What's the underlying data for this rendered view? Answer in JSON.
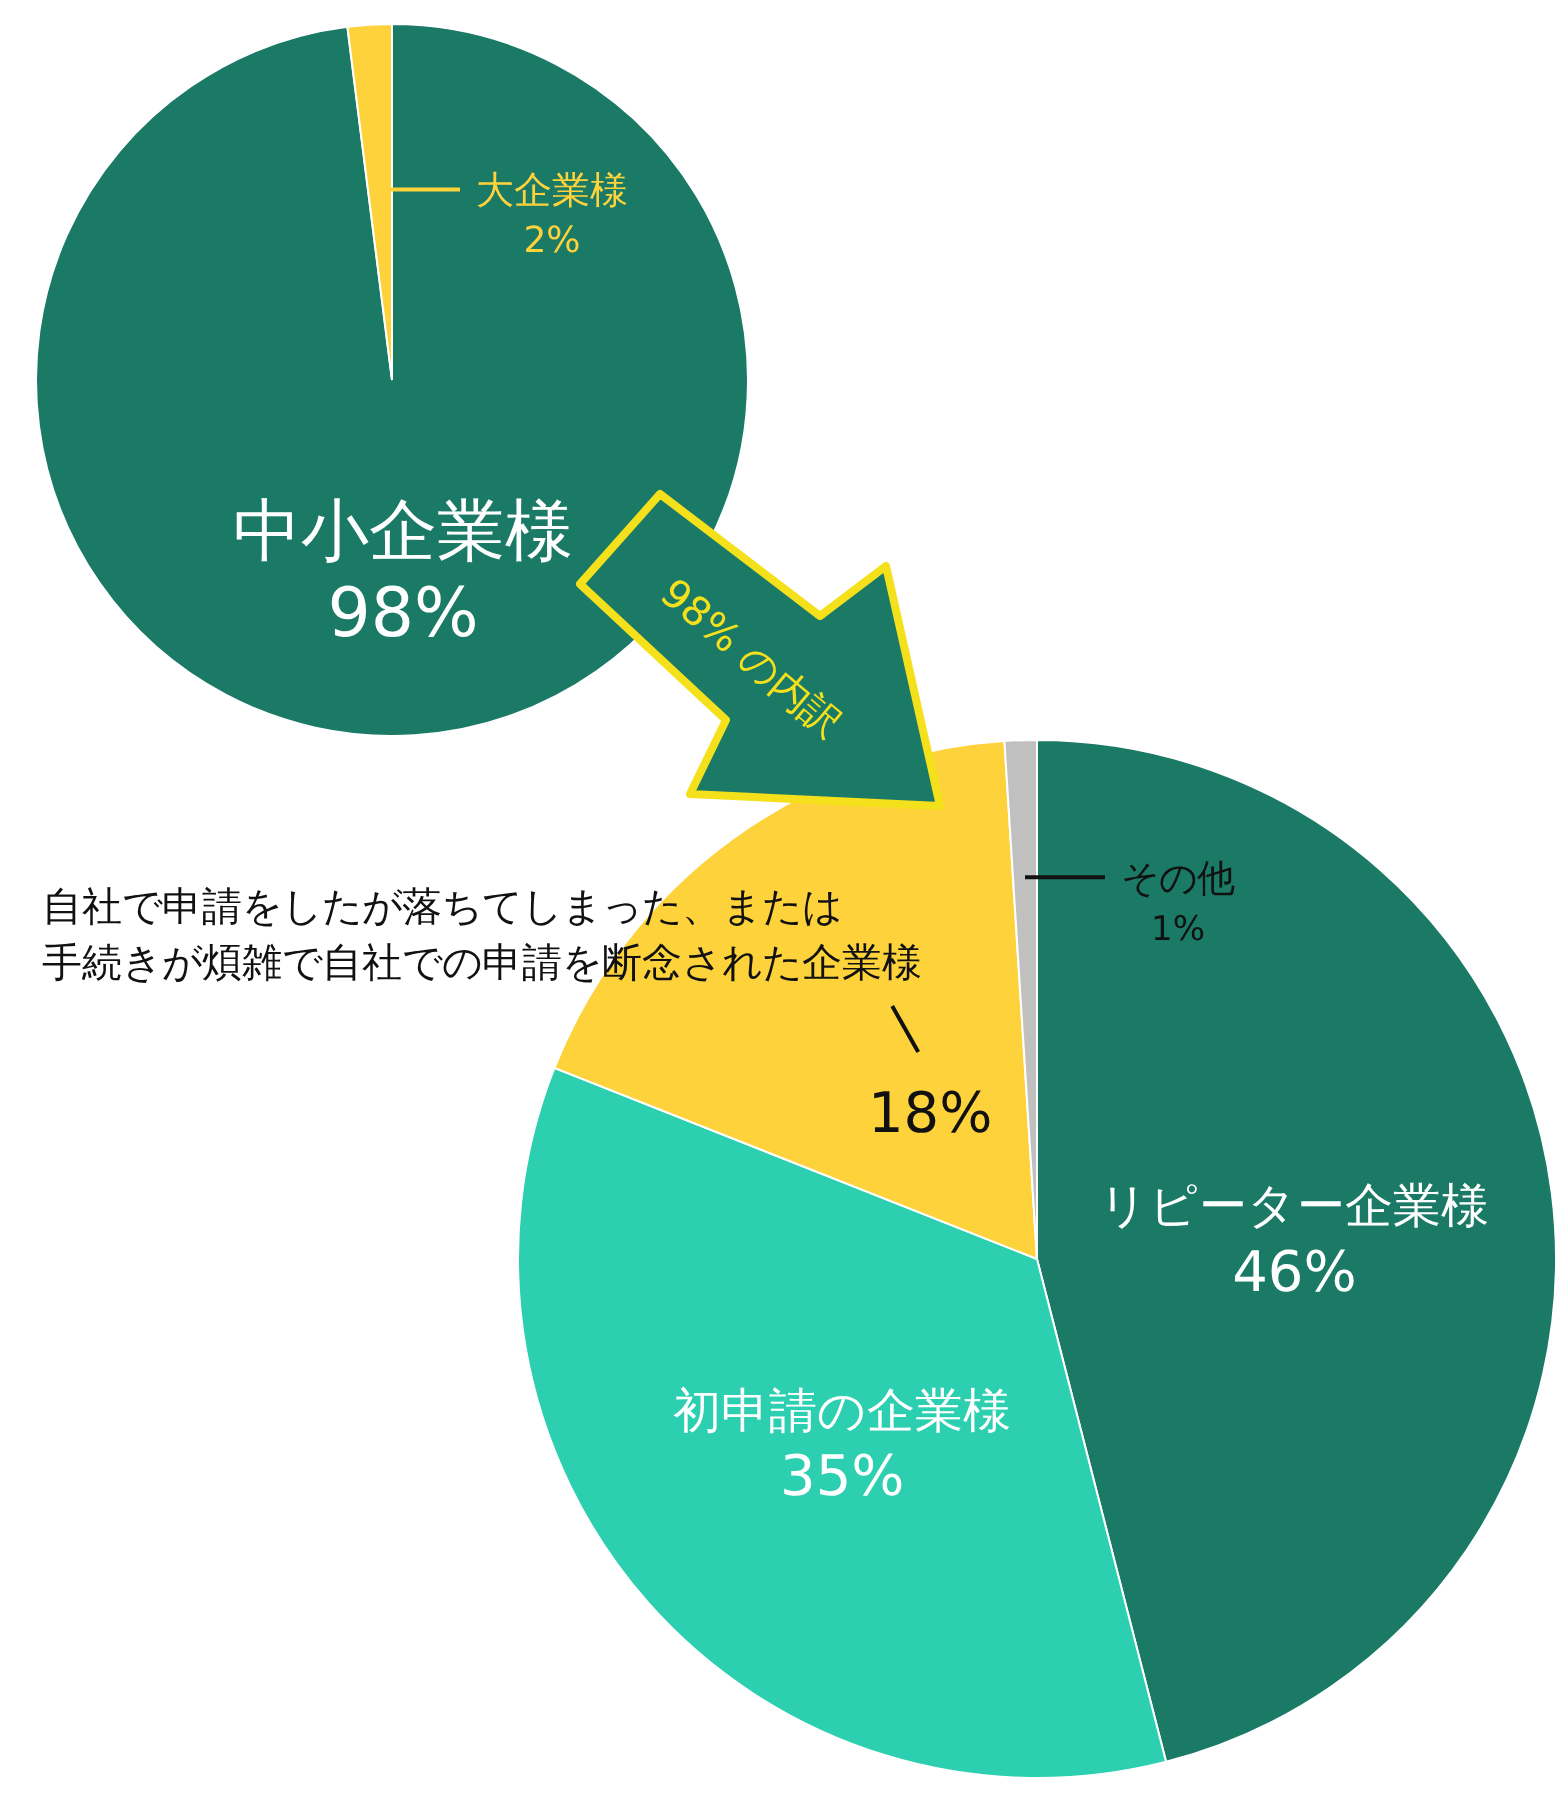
{
  "chart_data": [
    {
      "type": "pie",
      "categories": [
        "中小企業様",
        "大企業様"
      ],
      "values": [
        98,
        2
      ],
      "colors": [
        "#1a7a66",
        "#fed23b"
      ],
      "value_labels": [
        "98%",
        "2%"
      ]
    },
    {
      "type": "pie",
      "categories": [
        "リピーター企業様",
        "初申請の企業様",
        "自社で申請をしたが落ちてしまった、または手続きが煩雑で自社での申請を断念された企業様",
        "その他"
      ],
      "values": [
        46,
        35,
        18,
        1
      ],
      "colors": [
        "#1a7a66",
        "#2ccfb0",
        "#fed23b",
        "#c0c0c0"
      ],
      "value_labels": [
        "46%",
        "35%",
        "18%",
        "1%"
      ],
      "annotations": [
        "98% の内訳"
      ]
    }
  ]
}
